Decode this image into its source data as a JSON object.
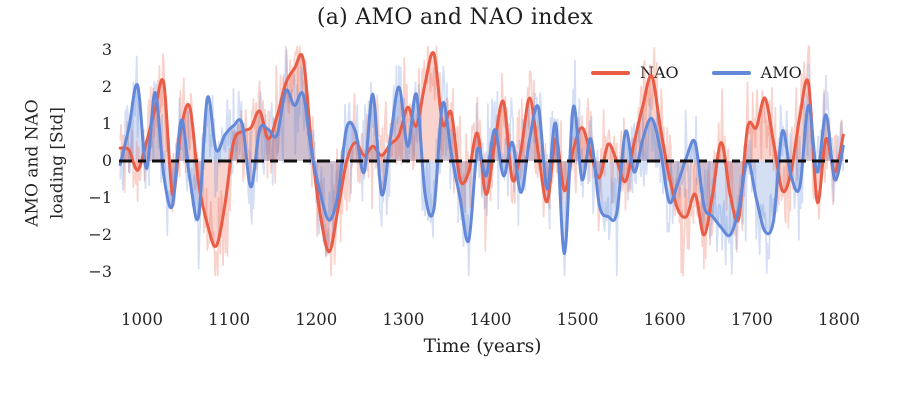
{
  "figure": {
    "title": "(a) AMO and NAO index",
    "ylabel_line1": "AMO and NAO",
    "ylabel_line2": "loading [Std]",
    "xlabel": "Time (years)"
  },
  "chart_data": {
    "type": "line",
    "title": "(a) AMO and NAO index",
    "xlabel": "Time (years)",
    "ylabel": "AMO and NAO loading [Std]",
    "xlim": [
      965,
      1815
    ],
    "ylim": [
      -3,
      3
    ],
    "grid": false,
    "legend_position": "upper right",
    "xticks": [
      1000,
      1100,
      1200,
      1300,
      1400,
      1500,
      1600,
      1700,
      1800
    ],
    "yticks": [
      3,
      2,
      1,
      0,
      -1,
      -2,
      -3
    ],
    "ytick_labels": [
      "3",
      "2",
      "1",
      "0",
      "−1",
      "−2",
      "−3"
    ],
    "zero_line": {
      "y": 0,
      "color": "#111111",
      "style": "dashed"
    },
    "x_years": [
      975,
      985,
      995,
      1005,
      1015,
      1025,
      1035,
      1045,
      1055,
      1065,
      1075,
      1085,
      1095,
      1105,
      1115,
      1125,
      1135,
      1145,
      1155,
      1165,
      1175,
      1185,
      1195,
      1205,
      1215,
      1225,
      1235,
      1245,
      1255,
      1265,
      1275,
      1285,
      1295,
      1305,
      1315,
      1325,
      1335,
      1345,
      1355,
      1365,
      1375,
      1385,
      1395,
      1405,
      1415,
      1425,
      1435,
      1445,
      1455,
      1465,
      1475,
      1485,
      1495,
      1505,
      1515,
      1525,
      1535,
      1545,
      1555,
      1565,
      1575,
      1585,
      1595,
      1605,
      1615,
      1625,
      1635,
      1645,
      1655,
      1665,
      1675,
      1685,
      1695,
      1705,
      1715,
      1725,
      1735,
      1745,
      1755,
      1765,
      1775,
      1785,
      1795,
      1805
    ],
    "series": [
      {
        "name": "NAO",
        "color": "#e95d47",
        "values": [
          0.35,
          0.3,
          -0.25,
          0.5,
          1.4,
          2.1,
          -0.9,
          0.9,
          1.45,
          -0.6,
          -1.7,
          -2.3,
          -1.2,
          0.5,
          0.8,
          0.9,
          1.35,
          0.6,
          1.2,
          2.1,
          2.5,
          2.75,
          0.3,
          -1.5,
          -2.45,
          -1.3,
          0.0,
          0.5,
          0.15,
          0.4,
          0.15,
          0.45,
          0.7,
          1.45,
          0.95,
          2.1,
          2.9,
          1.0,
          1.3,
          -0.5,
          -0.3,
          0.75,
          -0.9,
          0.5,
          1.6,
          -0.5,
          0.3,
          1.7,
          0.2,
          -1.1,
          0.6,
          -0.8,
          0.3,
          0.9,
          0.2,
          -0.45,
          0.45,
          0.0,
          -0.55,
          0.5,
          1.5,
          2.3,
          0.9,
          -0.4,
          -1.3,
          -1.5,
          -0.9,
          -2.0,
          -0.9,
          0.5,
          -0.9,
          -1.55,
          0.9,
          0.9,
          1.7,
          0.5,
          -0.8,
          -0.3,
          1.2,
          2.1,
          -1.1,
          0.6,
          -0.3,
          0.7
        ]
      },
      {
        "name": "AMO",
        "color": "#6488d8",
        "values": [
          -0.1,
          0.9,
          2.05,
          -0.2,
          1.85,
          -0.4,
          -1.2,
          1.1,
          -0.5,
          -1.5,
          1.7,
          0.3,
          0.7,
          0.95,
          1.0,
          -0.7,
          0.85,
          0.85,
          0.7,
          1.9,
          1.5,
          1.8,
          0.2,
          -0.9,
          -1.6,
          -0.9,
          0.9,
          0.8,
          -0.3,
          1.8,
          -0.9,
          0.6,
          2.0,
          0.4,
          1.8,
          -0.9,
          -1.3,
          1.55,
          0.2,
          -1.0,
          -2.15,
          0.3,
          -0.4,
          0.85,
          -0.4,
          0.5,
          -0.85,
          0.6,
          1.45,
          -0.75,
          1.0,
          -2.5,
          1.45,
          -0.5,
          0.6,
          -1.2,
          -1.5,
          -1.4,
          0.8,
          -0.3,
          0.6,
          1.15,
          0.3,
          -1.1,
          -0.6,
          0.1,
          0.5,
          -1.2,
          -1.5,
          -1.8,
          -2.0,
          -1.3,
          0.0,
          -1.0,
          -1.9,
          -1.6,
          0.8,
          -0.4,
          -0.7,
          1.5,
          -0.3,
          1.25,
          -0.5,
          0.4
        ]
      }
    ]
  }
}
